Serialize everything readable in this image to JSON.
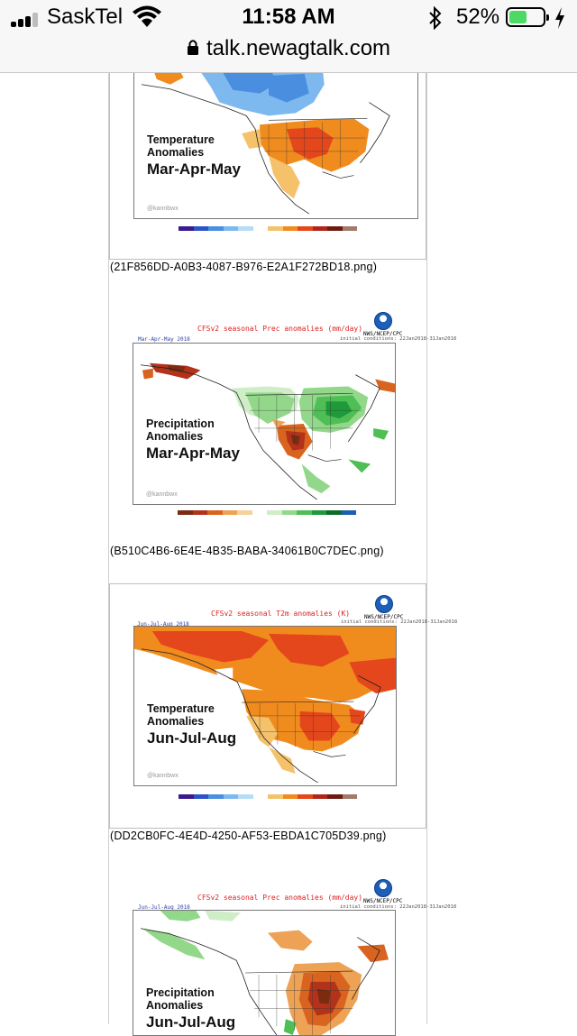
{
  "status_bar": {
    "carrier": "SaskTel",
    "time": "11:58 AM",
    "battery_percent": "52%",
    "battery_level": 0.52
  },
  "address_bar": {
    "url": "talk.newagtalk.com"
  },
  "figures": [
    {
      "overlay_line1": "Temperature",
      "overlay_line2": "Anomalies",
      "overlay_line3": "Mar-Apr-May",
      "watermark": "@kannbwx",
      "caption": "(21F856DD-A0B3-4087-B976-E2A1F272BD18.png)"
    },
    {
      "plot_title": "CFSv2 seasonal Prec anomalies (mm/day)",
      "plot_subtitle": "Mar-Apr-May 2018",
      "init_text": "initial conditions: 22Jan2018-31Jan2018",
      "agency": "NWS/NCEP/CPC",
      "overlay_line1": "Precipitation",
      "overlay_line2": "Anomalies",
      "overlay_line3": "Mar-Apr-May",
      "watermark": "@kannbwx",
      "caption": "(B510C4B6-6E4E-4B35-BABA-34061B0C7DEC.png)"
    },
    {
      "plot_title": "CFSv2 seasonal T2m anomalies (K)",
      "plot_subtitle": "Jun-Jul-Aug 2018",
      "init_text": "initial conditions: 22Jan2018-31Jan2018",
      "agency": "NWS/NCEP/CPC",
      "overlay_line1": "Temperature",
      "overlay_line2": "Anomalies",
      "overlay_line3": "Jun-Jul-Aug",
      "watermark": "@kannbwx",
      "caption": "(DD2CB0FC-4E4D-4250-AF53-EBDA1C705D39.png)"
    },
    {
      "plot_title": "CFSv2 seasonal Prec anomalies (mm/day)",
      "plot_subtitle": "Jun-Jul-Aug 2018",
      "init_text": "initial conditions: 22Jan2018-31Jan2018",
      "agency": "NWS/NCEP/CPC",
      "overlay_line1": "Precipitation",
      "overlay_line2": "Anomalies",
      "overlay_line3": "Jun-Jul-Aug"
    }
  ],
  "colors": {
    "temp_scale": [
      "#3b1a8c",
      "#2b54c9",
      "#4a8ee0",
      "#7db9ef",
      "#b6dcf7",
      "#ffffff",
      "#f5c26b",
      "#f08b1e",
      "#e4471b",
      "#b0261a",
      "#6e1a10",
      "#a07a6a"
    ],
    "prec_scale": [
      "#7a2b10",
      "#b2321a",
      "#d9641f",
      "#eda256",
      "#f5d29a",
      "#ffffff",
      "#cfeec8",
      "#93d88a",
      "#4fbf55",
      "#1f9a3a",
      "#0e6c2a",
      "#1f5fb0"
    ]
  }
}
